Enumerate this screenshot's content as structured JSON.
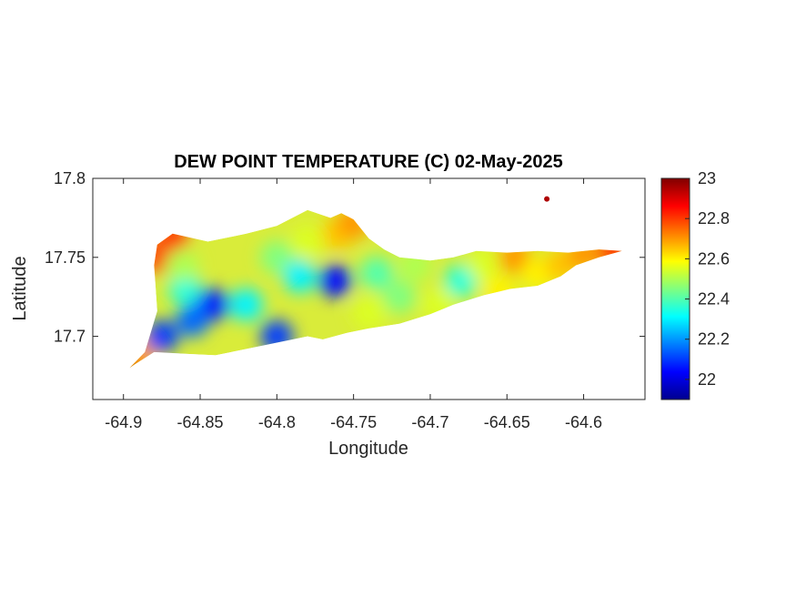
{
  "chart_data": {
    "type": "heatmap",
    "title": "DEW POINT TEMPERATURE (C) 02-May-2025",
    "xlabel": "Longitude",
    "ylabel": "Latitude",
    "xlim": [
      -64.92,
      -64.56
    ],
    "ylim": [
      17.66,
      17.8
    ],
    "x_ticks": [
      "-64.9",
      "-64.85",
      "-64.8",
      "-64.75",
      "-64.7",
      "-64.65",
      "-64.6"
    ],
    "x_tick_values": [
      -64.9,
      -64.85,
      -64.8,
      -64.75,
      -64.7,
      -64.65,
      -64.6
    ],
    "y_ticks": [
      "17.7",
      "17.75",
      "17.8"
    ],
    "y_tick_values": [
      17.7,
      17.75,
      17.8
    ],
    "colorbar": {
      "colormap": "jet",
      "range": [
        21.9,
        23.0
      ],
      "ticks": [
        "22",
        "22.2",
        "22.4",
        "22.6",
        "22.8",
        "23"
      ],
      "tick_values": [
        22.0,
        22.2,
        22.4,
        22.6,
        22.8,
        23.0
      ]
    },
    "grid": false,
    "region_outline": [
      [
        -64.896,
        17.68
      ],
      [
        -64.886,
        17.69
      ],
      [
        -64.878,
        17.716
      ],
      [
        -64.88,
        17.745
      ],
      [
        -64.878,
        17.758
      ],
      [
        -64.868,
        17.765
      ],
      [
        -64.845,
        17.76
      ],
      [
        -64.82,
        17.765
      ],
      [
        -64.8,
        17.77
      ],
      [
        -64.78,
        17.78
      ],
      [
        -64.765,
        17.775
      ],
      [
        -64.758,
        17.778
      ],
      [
        -64.75,
        17.774
      ],
      [
        -64.74,
        17.762
      ],
      [
        -64.73,
        17.755
      ],
      [
        -64.72,
        17.75
      ],
      [
        -64.7,
        17.748
      ],
      [
        -64.685,
        17.75
      ],
      [
        -64.67,
        17.754
      ],
      [
        -64.65,
        17.753
      ],
      [
        -64.63,
        17.754
      ],
      [
        -64.61,
        17.753
      ],
      [
        -64.59,
        17.755
      ],
      [
        -64.575,
        17.754
      ],
      [
        -64.59,
        17.75
      ],
      [
        -64.605,
        17.745
      ],
      [
        -64.615,
        17.738
      ],
      [
        -64.63,
        17.732
      ],
      [
        -64.648,
        17.73
      ],
      [
        -64.665,
        17.726
      ],
      [
        -64.685,
        17.72
      ],
      [
        -64.7,
        17.714
      ],
      [
        -64.72,
        17.708
      ],
      [
        -64.74,
        17.705
      ],
      [
        -64.755,
        17.702
      ],
      [
        -64.77,
        17.698
      ],
      [
        -64.78,
        17.7
      ],
      [
        -64.8,
        17.696
      ],
      [
        -64.82,
        17.692
      ],
      [
        -64.84,
        17.688
      ],
      [
        -64.86,
        17.689
      ],
      [
        -64.88,
        17.69
      ],
      [
        -64.893,
        17.682
      ]
    ],
    "islet": {
      "lon": -64.624,
      "lat": 17.787,
      "value": 22.95
    },
    "sample_points": [
      {
        "lon": -64.898,
        "lat": 17.68,
        "value": 22.98
      },
      {
        "lon": -64.89,
        "lat": 17.688,
        "value": 22.7
      },
      {
        "lon": -64.878,
        "lat": 17.75,
        "value": 22.8
      },
      {
        "lon": -64.868,
        "lat": 17.763,
        "value": 22.8
      },
      {
        "lon": -64.86,
        "lat": 17.73,
        "value": 22.35
      },
      {
        "lon": -64.862,
        "lat": 17.745,
        "value": 22.5
      },
      {
        "lon": -64.842,
        "lat": 17.72,
        "value": 22.05
      },
      {
        "lon": -64.875,
        "lat": 17.7,
        "value": 22.1
      },
      {
        "lon": -64.855,
        "lat": 17.71,
        "value": 22.15
      },
      {
        "lon": -64.82,
        "lat": 17.72,
        "value": 22.3
      },
      {
        "lon": -64.8,
        "lat": 17.7,
        "value": 22.1
      },
      {
        "lon": -64.8,
        "lat": 17.75,
        "value": 22.45
      },
      {
        "lon": -64.785,
        "lat": 17.738,
        "value": 22.3
      },
      {
        "lon": -64.78,
        "lat": 17.76,
        "value": 22.55
      },
      {
        "lon": -64.762,
        "lat": 17.735,
        "value": 22.05
      },
      {
        "lon": -64.76,
        "lat": 17.765,
        "value": 22.65
      },
      {
        "lon": -64.75,
        "lat": 17.772,
        "value": 22.7
      },
      {
        "lon": -64.74,
        "lat": 17.715,
        "value": 22.55
      },
      {
        "lon": -64.735,
        "lat": 17.74,
        "value": 22.4
      },
      {
        "lon": -64.72,
        "lat": 17.725,
        "value": 22.45
      },
      {
        "lon": -64.71,
        "lat": 17.745,
        "value": 22.5
      },
      {
        "lon": -64.695,
        "lat": 17.72,
        "value": 22.55
      },
      {
        "lon": -64.68,
        "lat": 17.735,
        "value": 22.35
      },
      {
        "lon": -64.665,
        "lat": 17.745,
        "value": 22.55
      },
      {
        "lon": -64.655,
        "lat": 17.728,
        "value": 22.6
      },
      {
        "lon": -64.645,
        "lat": 17.75,
        "value": 22.7
      },
      {
        "lon": -64.63,
        "lat": 17.74,
        "value": 22.6
      },
      {
        "lon": -64.615,
        "lat": 17.745,
        "value": 22.65
      },
      {
        "lon": -64.6,
        "lat": 17.752,
        "value": 22.7
      },
      {
        "lon": -64.58,
        "lat": 17.754,
        "value": 22.8
      }
    ]
  }
}
